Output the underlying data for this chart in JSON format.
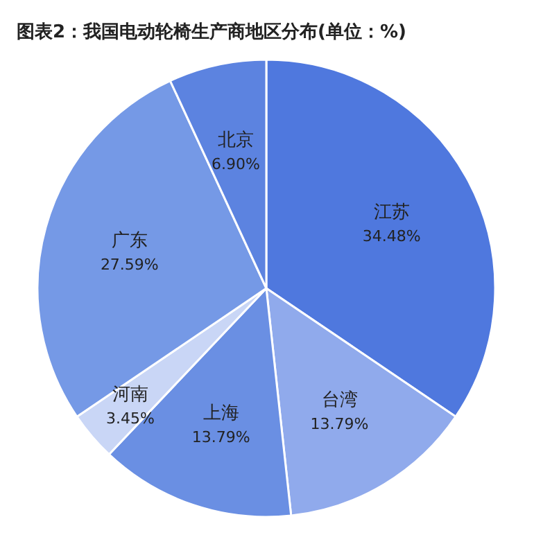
{
  "chart_data": {
    "type": "pie",
    "title": "图表2：我国电动轮椅生产商地区分布(单位：%)",
    "categories": [
      "江苏",
      "台湾",
      "上海",
      "河南",
      "广东",
      "北京"
    ],
    "values": [
      34.48,
      13.79,
      13.79,
      3.45,
      27.59,
      6.9
    ],
    "value_labels": [
      "34.48%",
      "13.79%",
      "13.79%",
      "3.45%",
      "27.59%",
      "6.90%"
    ],
    "colors": [
      "#4f78de",
      "#90aaec",
      "#6a8fe3",
      "#c9d6f6",
      "#7599e6",
      "#5c83e0"
    ]
  }
}
